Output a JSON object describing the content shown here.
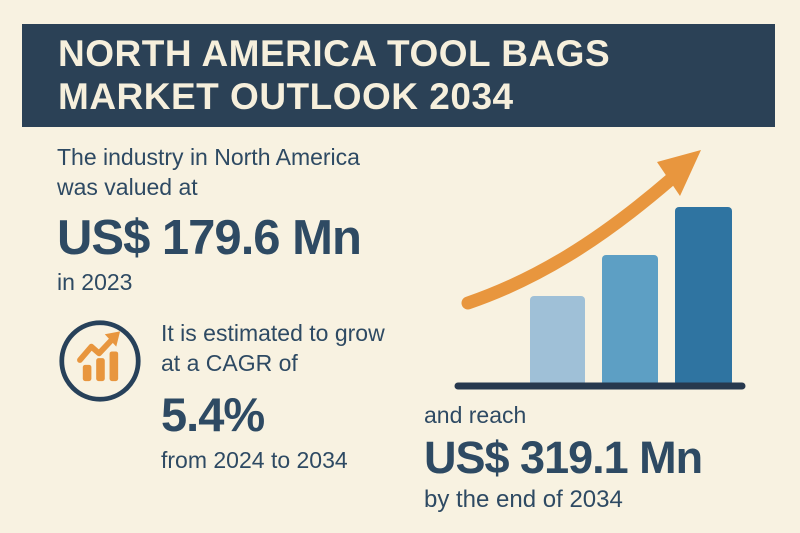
{
  "header": {
    "title_line1": "NORTH AMERICA TOOL BAGS",
    "title_line2": "MARKET OUTLOOK 2034"
  },
  "valuation": {
    "intro_line1": "The industry in North America",
    "intro_line2": "was valued at",
    "value": "US$ 179.6 Mn",
    "year": "in 2023"
  },
  "cagr": {
    "icon": "growth-chart-icon",
    "line1": "It is estimated to grow",
    "line2": "at a CAGR of",
    "value": "5.4%",
    "period": "from 2024 to 2034"
  },
  "projection": {
    "lead": "and reach",
    "value": "US$ 319.1 Mn",
    "period": "by the end of 2034"
  },
  "colors": {
    "background": "#f8f2e1",
    "band_navy": "#2b4156",
    "text_navy": "#2e4a63",
    "accent_orange": "#e8963e",
    "bar_light": "#9fc0d7",
    "bar_medium": "#5d9fc4",
    "bar_dark": "#2f74a1",
    "baseline_navy": "#27394e"
  },
  "chart_data": {
    "type": "bar",
    "purpose": "decorative growth illustration (no axes or tick labels shown)",
    "bars": [
      {
        "relative_height": 0.5,
        "color": "#9fc0d7"
      },
      {
        "relative_height": 0.73,
        "color": "#5d9fc4"
      },
      {
        "relative_height": 1.0,
        "color": "#2f74a1"
      }
    ],
    "annotations": [
      "orange upward curved trend arrow above bars",
      "dark navy baseline under bars"
    ],
    "known_values": {
      "start_year": 2023,
      "start_value_usd_mn": 179.6,
      "end_year": 2034,
      "end_value_usd_mn": 319.1,
      "cagr_percent": 5.4
    },
    "legend": "none",
    "grid": "off"
  }
}
